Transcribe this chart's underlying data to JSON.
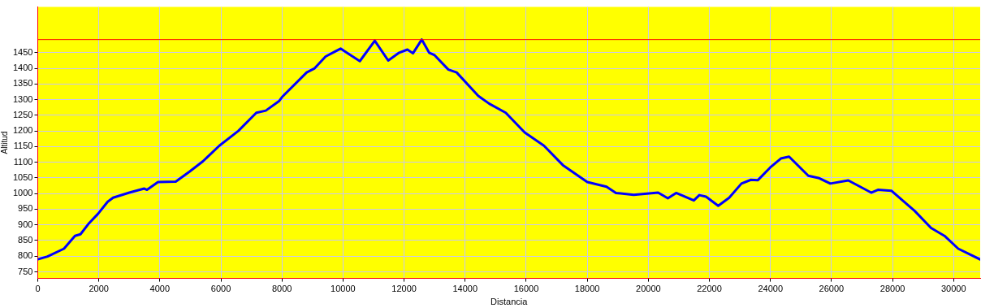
{
  "chart_data": {
    "type": "line",
    "xlabel": "Distancia",
    "ylabel": "Altitud",
    "xlim": [
      0,
      30870
    ],
    "ylim": [
      729,
      1596
    ],
    "xticks": [
      0,
      2000,
      4000,
      6000,
      8000,
      10000,
      12000,
      14000,
      16000,
      18000,
      20000,
      22000,
      24000,
      26000,
      28000,
      30000
    ],
    "yticks": [
      750,
      800,
      850,
      900,
      950,
      1000,
      1050,
      1100,
      1150,
      1200,
      1250,
      1300,
      1350,
      1400,
      1450
    ],
    "grid": true,
    "legend": false,
    "marker": "none",
    "line_style": "solid",
    "ref_lines": [
      {
        "axis": "y",
        "value": 1492,
        "color": "#ff0000"
      }
    ],
    "series": [
      {
        "color": "#0000ff",
        "x": [
          0,
          320,
          860,
          1220,
          1400,
          1660,
          1980,
          2290,
          2470,
          3000,
          3490,
          3580,
          3940,
          4520,
          4970,
          5410,
          5950,
          6570,
          7160,
          7470,
          7910,
          8000,
          8810,
          9070,
          9430,
          9740,
          9920,
          10150,
          10550,
          11040,
          11480,
          11840,
          12110,
          12290,
          12580,
          12820,
          13000,
          13450,
          13720,
          14430,
          14790,
          15330,
          15950,
          16580,
          17200,
          18000,
          18630,
          18940,
          19520,
          20320,
          20640,
          20910,
          21490,
          21670,
          21890,
          22290,
          22650,
          23050,
          23360,
          23590,
          23990,
          24340,
          24610,
          25240,
          25600,
          25960,
          26550,
          27300,
          27520,
          27960,
          28720,
          29260,
          29700,
          30150,
          30860
        ],
        "values": [
          790,
          799,
          824,
          865,
          870,
          903,
          936,
          974,
          987,
          1003,
          1016,
          1012,
          1037,
          1038,
          1070,
          1103,
          1153,
          1200,
          1258,
          1265,
          1296,
          1308,
          1387,
          1400,
          1438,
          1454,
          1463,
          1448,
          1423,
          1488,
          1425,
          1450,
          1460,
          1448,
          1492,
          1450,
          1442,
          1396,
          1387,
          1312,
          1287,
          1258,
          1195,
          1153,
          1091,
          1037,
          1022,
          1002,
          996,
          1003,
          985,
          1002,
          978,
          995,
          990,
          961,
          987,
          1032,
          1044,
          1043,
          1083,
          1112,
          1118,
          1057,
          1049,
          1032,
          1042,
          1003,
          1012,
          1009,
          945,
          890,
          865,
          824,
          790
        ]
      }
    ]
  }
}
